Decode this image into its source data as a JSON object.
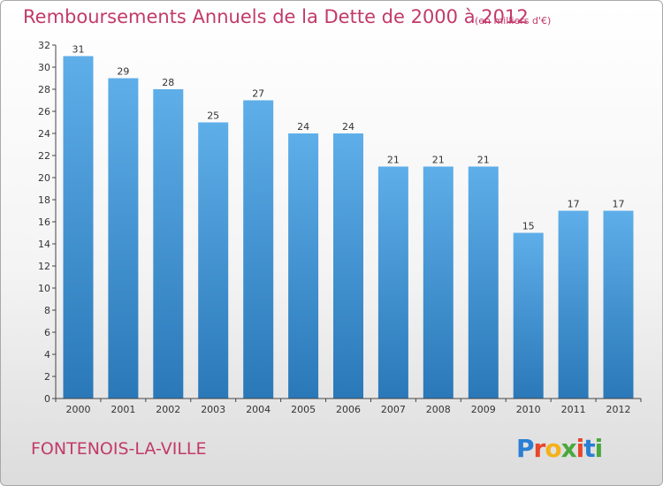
{
  "title": "Remboursements Annuels de la Dette de 2000 à 2012",
  "subtitle": "(en milliers d'€)",
  "location": "FONTENOIS-LA-VILLE",
  "logo": {
    "text": "Proxiti"
  },
  "colors": {
    "title": "#c23a6a",
    "bar_top": "#5eaee9",
    "bar_bottom": "#2a78b8"
  },
  "chart_data": {
    "type": "bar",
    "categories": [
      "2000",
      "2001",
      "2002",
      "2003",
      "2004",
      "2005",
      "2006",
      "2007",
      "2008",
      "2009",
      "2010",
      "2011",
      "2012"
    ],
    "values": [
      31,
      29,
      28,
      25,
      27,
      24,
      24,
      21,
      21,
      21,
      15,
      17,
      17
    ],
    "ylim": [
      0,
      32
    ],
    "yticks": [
      0,
      2,
      4,
      6,
      8,
      10,
      12,
      14,
      16,
      18,
      20,
      22,
      24,
      26,
      28,
      30,
      32
    ],
    "grid": false,
    "xlabel": "",
    "ylabel": ""
  }
}
